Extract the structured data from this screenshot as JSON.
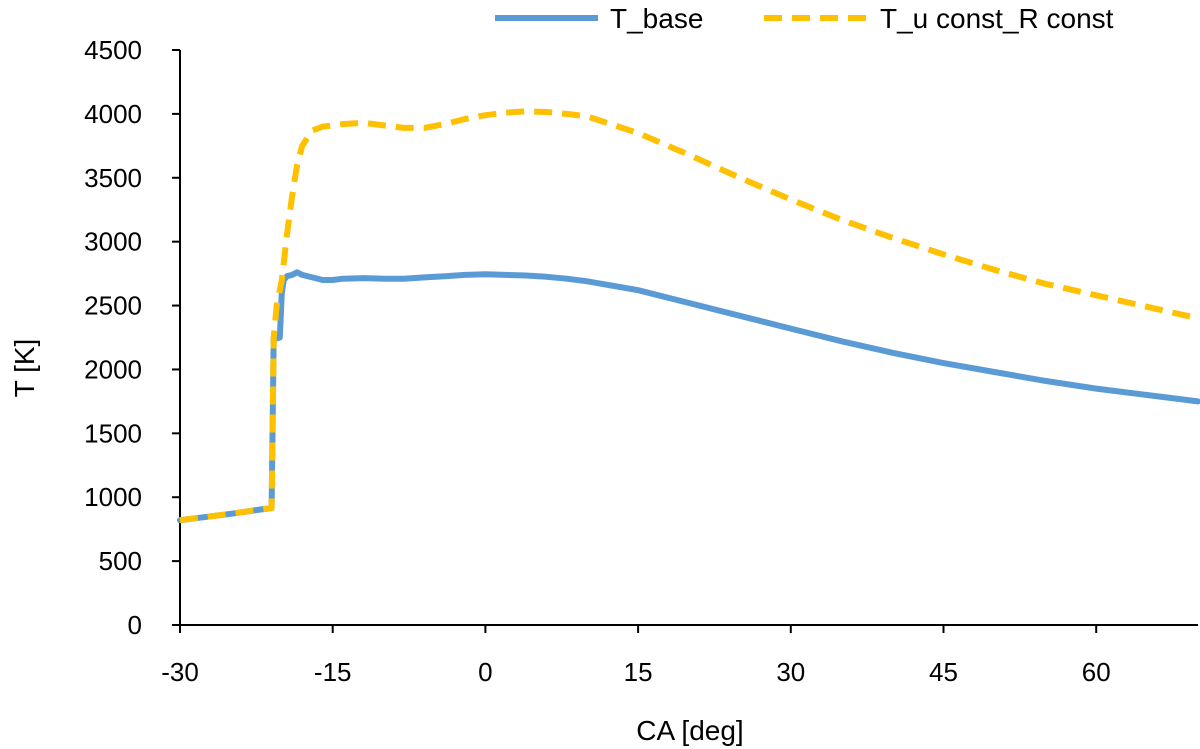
{
  "chart_data": {
    "type": "line",
    "xlabel": "CA [deg]",
    "ylabel": "T [K]",
    "xlim": [
      -30,
      70
    ],
    "ylim": [
      0,
      4500
    ],
    "xticks": [
      -30,
      -15,
      0,
      15,
      30,
      45,
      60
    ],
    "yticks": [
      0,
      500,
      1000,
      1500,
      2000,
      2500,
      3000,
      3500,
      4000,
      4500
    ],
    "grid": false,
    "legend_position": "top-right",
    "series": [
      {
        "name": "T_base",
        "color": "#5b9bd5",
        "style": "solid",
        "x": [
          -30,
          -25,
          -22,
          -21,
          -20.8,
          -20.6,
          -20.2,
          -20,
          -19.8,
          -19.5,
          -19,
          -18.5,
          -18,
          -17,
          -16,
          -15,
          -14,
          -12,
          -10,
          -8,
          -6,
          -4,
          -2,
          0,
          2,
          4,
          6,
          8,
          10,
          15,
          20,
          25,
          30,
          35,
          40,
          45,
          50,
          55,
          60,
          65,
          70
        ],
        "y": [
          820,
          870,
          905,
          915,
          2250,
          2240,
          2250,
          2600,
          2700,
          2730,
          2740,
          2760,
          2740,
          2720,
          2700,
          2700,
          2710,
          2715,
          2710,
          2710,
          2720,
          2730,
          2740,
          2745,
          2740,
          2735,
          2725,
          2710,
          2690,
          2620,
          2520,
          2420,
          2320,
          2220,
          2130,
          2050,
          1980,
          1910,
          1850,
          1800,
          1750
        ]
      },
      {
        "name": "T_u const_R const",
        "color": "#ffc000",
        "style": "dashed",
        "x": [
          -30,
          -25,
          -22,
          -21,
          -20.8,
          -20.5,
          -20,
          -19.5,
          -19,
          -18.5,
          -18,
          -17,
          -16,
          -15,
          -14,
          -12,
          -10,
          -8,
          -6,
          -4,
          -2,
          0,
          2,
          4,
          6,
          8,
          10,
          15,
          20,
          25,
          30,
          35,
          40,
          45,
          50,
          55,
          60,
          65,
          70
        ],
        "y": [
          820,
          870,
          905,
          915,
          2250,
          2500,
          2700,
          3050,
          3350,
          3600,
          3750,
          3870,
          3900,
          3910,
          3920,
          3930,
          3910,
          3890,
          3890,
          3920,
          3960,
          3990,
          4010,
          4020,
          4015,
          4000,
          3980,
          3850,
          3680,
          3500,
          3330,
          3170,
          3030,
          2900,
          2780,
          2670,
          2580,
          2490,
          2400
        ]
      }
    ]
  }
}
